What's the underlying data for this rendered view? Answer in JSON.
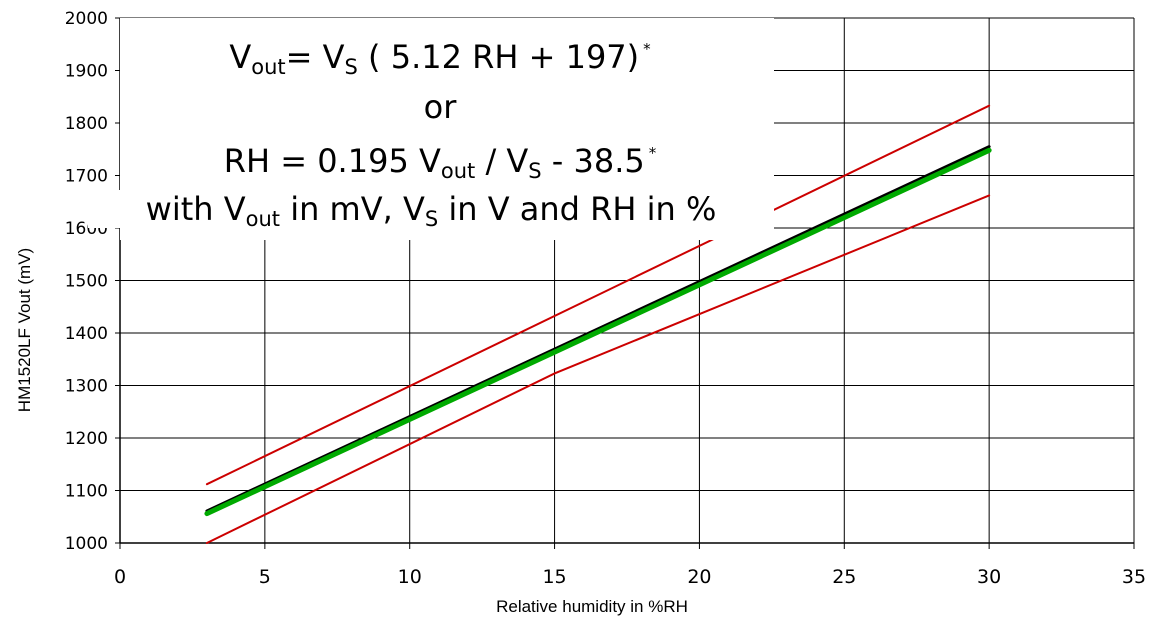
{
  "chart_data": {
    "type": "line",
    "title": "",
    "xlabel": "Relative humidity in %RH",
    "ylabel": "HM1520LF Vout (mV)",
    "xlim": [
      0,
      35
    ],
    "ylim": [
      1000,
      2000
    ],
    "x_ticks": [
      "0",
      "5",
      "10",
      "15",
      "20",
      "25",
      "30",
      "35"
    ],
    "y_ticks": [
      "1000",
      "1100",
      "1200",
      "1300",
      "1400",
      "1500",
      "1600",
      "1700",
      "1800",
      "1900",
      "2000"
    ],
    "grid": true,
    "series": [
      {
        "color": "#cc0000",
        "x": [
          3,
          30
        ],
        "y": [
          1112,
          1833
        ]
      },
      {
        "color": "#000000",
        "x": [
          3,
          30
        ],
        "y": [
          1061,
          1755
        ]
      },
      {
        "color": "#00aa00",
        "x": [
          3,
          30
        ],
        "y": [
          1056,
          1748
        ]
      },
      {
        "color": "#cc0000",
        "x": [
          3,
          15,
          30
        ],
        "y": [
          1000,
          1323,
          1662
        ]
      }
    ],
    "annotation": {
      "line1": {
        "v": "V",
        "out": "out",
        "eq": "= V",
        "s": "S",
        "rest": " ( 5.12 RH + 197)",
        "star": "*"
      },
      "line2": "or",
      "line3": {
        "pre": "RH = 0.195 V",
        "out": "out",
        "mid": " / V",
        "s": "S",
        "post": " - 38.5",
        "star": "*"
      },
      "line4": {
        "pre": "with V",
        "out": "out",
        "mid": " in mV, V",
        "s": "S",
        "post": " in V and RH in %"
      }
    }
  }
}
